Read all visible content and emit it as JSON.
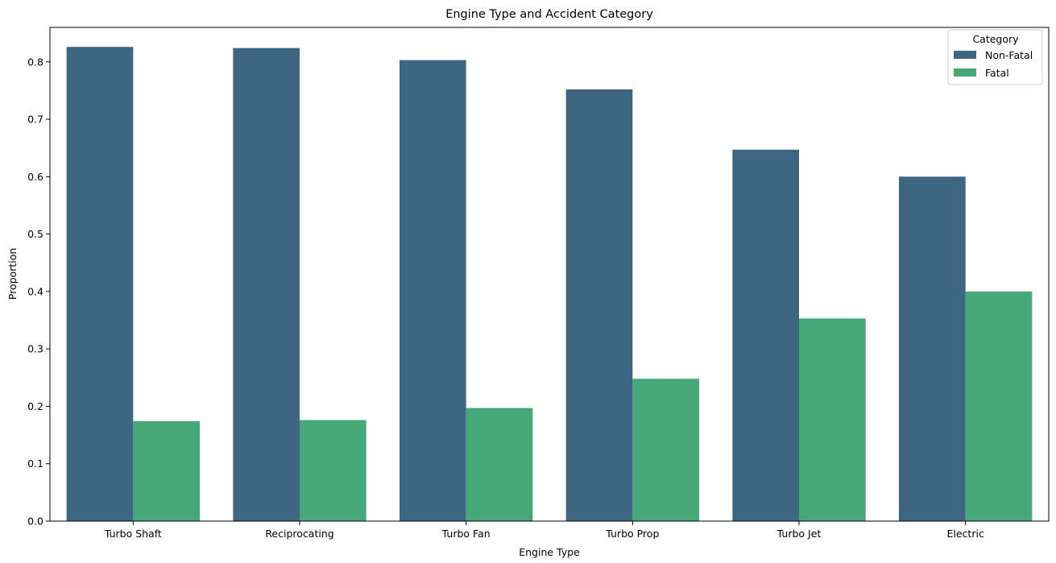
{
  "chart_data": {
    "type": "bar",
    "title": "Engine Type and Accident Category",
    "xlabel": "Engine Type",
    "ylabel": "Proportion",
    "ylim": [
      0,
      0.86
    ],
    "yticks": [
      "0.0",
      "0.1",
      "0.2",
      "0.3",
      "0.4",
      "0.5",
      "0.6",
      "0.7",
      "0.8"
    ],
    "categories": [
      "Turbo Shaft",
      "Reciprocating",
      "Turbo Fan",
      "Turbo Prop",
      "Turbo Jet",
      "Electric"
    ],
    "legend": {
      "title": "Category",
      "placement": "top-right"
    },
    "grid": false,
    "series": [
      {
        "name": "Non-Fatal",
        "color": "#3e6683",
        "values": [
          0.826,
          0.824,
          0.803,
          0.752,
          0.647,
          0.6
        ]
      },
      {
        "name": "Fatal",
        "color": "#46a878",
        "values": [
          0.174,
          0.176,
          0.197,
          0.248,
          0.353,
          0.4
        ]
      }
    ]
  }
}
